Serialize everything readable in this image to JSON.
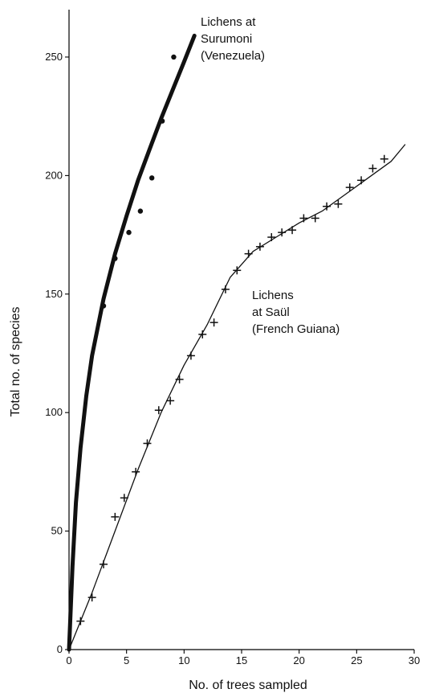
{
  "chart_data": {
    "type": "scatter",
    "xlabel": "No. of trees sampled",
    "ylabel": "Total no. of species",
    "xlim": [
      0,
      30
    ],
    "ylim": [
      0,
      270
    ],
    "x_ticks": [
      0,
      5,
      10,
      15,
      20,
      25,
      30
    ],
    "y_ticks": [
      0,
      50,
      100,
      150,
      200,
      250
    ],
    "grid": false,
    "legend": "none",
    "series": [
      {
        "name": "Lichens at Surumoni (Venezuela)",
        "label_lines": [
          "Lichens at",
          "Surumoni",
          "(Venezuela)"
        ],
        "marker": "dot",
        "points": [
          {
            "x": 3,
            "y": 145
          },
          {
            "x": 4,
            "y": 165
          },
          {
            "x": 5.2,
            "y": 176
          },
          {
            "x": 6.2,
            "y": 185
          },
          {
            "x": 7.2,
            "y": 199
          },
          {
            "x": 8.1,
            "y": 223
          },
          {
            "x": 9.1,
            "y": 250
          }
        ],
        "curve": [
          {
            "x": 0,
            "y": 0
          },
          {
            "x": 0.3,
            "y": 35
          },
          {
            "x": 0.6,
            "y": 62
          },
          {
            "x": 1,
            "y": 85
          },
          {
            "x": 1.5,
            "y": 107
          },
          {
            "x": 2,
            "y": 124
          },
          {
            "x": 3,
            "y": 148
          },
          {
            "x": 4,
            "y": 167
          },
          {
            "x": 5,
            "y": 183
          },
          {
            "x": 6,
            "y": 198
          },
          {
            "x": 7,
            "y": 211
          },
          {
            "x": 8,
            "y": 224
          },
          {
            "x": 9,
            "y": 236
          },
          {
            "x": 10,
            "y": 248
          },
          {
            "x": 10.9,
            "y": 259
          }
        ]
      },
      {
        "name": "Lichens at Saül (French Guiana)",
        "label_lines": [
          "Lichens",
          "at Saül",
          "(French Guiana)"
        ],
        "marker": "plus",
        "points": [
          {
            "x": 1,
            "y": 12
          },
          {
            "x": 2,
            "y": 22
          },
          {
            "x": 3,
            "y": 36
          },
          {
            "x": 4,
            "y": 56
          },
          {
            "x": 4.8,
            "y": 64
          },
          {
            "x": 5.8,
            "y": 75
          },
          {
            "x": 6.8,
            "y": 87
          },
          {
            "x": 7.8,
            "y": 101
          },
          {
            "x": 8.8,
            "y": 105
          },
          {
            "x": 9.6,
            "y": 114
          },
          {
            "x": 10.6,
            "y": 124
          },
          {
            "x": 11.6,
            "y": 133
          },
          {
            "x": 12.6,
            "y": 138
          },
          {
            "x": 13.6,
            "y": 152
          },
          {
            "x": 14.6,
            "y": 160
          },
          {
            "x": 15.6,
            "y": 167
          },
          {
            "x": 16.6,
            "y": 170
          },
          {
            "x": 17.6,
            "y": 174
          },
          {
            "x": 18.5,
            "y": 176
          },
          {
            "x": 19.4,
            "y": 177
          },
          {
            "x": 20.4,
            "y": 182
          },
          {
            "x": 21.4,
            "y": 182
          },
          {
            "x": 22.4,
            "y": 187
          },
          {
            "x": 23.4,
            "y": 188
          },
          {
            "x": 24.4,
            "y": 195
          },
          {
            "x": 25.4,
            "y": 198
          },
          {
            "x": 26.4,
            "y": 203
          },
          {
            "x": 27.4,
            "y": 207
          }
        ],
        "curve": [
          {
            "x": 0,
            "y": 0
          },
          {
            "x": 2,
            "y": 24
          },
          {
            "x": 4,
            "y": 50
          },
          {
            "x": 6,
            "y": 76
          },
          {
            "x": 8,
            "y": 100
          },
          {
            "x": 10,
            "y": 120
          },
          {
            "x": 12,
            "y": 137
          },
          {
            "x": 14,
            "y": 157
          },
          {
            "x": 16,
            "y": 168
          },
          {
            "x": 18,
            "y": 174
          },
          {
            "x": 20,
            "y": 180
          },
          {
            "x": 22,
            "y": 185
          },
          {
            "x": 24,
            "y": 192
          },
          {
            "x": 26,
            "y": 199
          },
          {
            "x": 28,
            "y": 206
          },
          {
            "x": 29.2,
            "y": 213
          }
        ]
      }
    ]
  }
}
